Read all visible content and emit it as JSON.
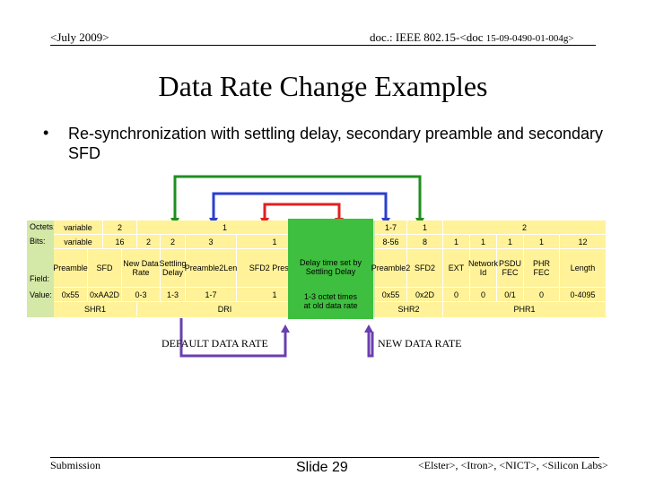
{
  "header": {
    "date": "<July 2009>",
    "doc_prefix": "doc.: IEEE 802.15-<doc ",
    "doc_number": "15-09-0490-01-004g>"
  },
  "title": "Data Rate Change Examples",
  "bullet": "Re-synchronization with settling delay, secondary preamble and secondary SFD",
  "frame": {
    "row_labels": [
      "Octets:",
      "Bits:",
      "Field:",
      "Value:"
    ],
    "left": {
      "octets": [
        "variable",
        "2",
        "1"
      ],
      "bits": [
        "variable",
        "16",
        "2",
        "2",
        "3",
        "1"
      ],
      "fields": [
        "Preamble",
        "SFD",
        "New Data Rate",
        "Settling Delay",
        "Preamble2Len",
        "SFD2 Present"
      ],
      "values": [
        "0x55",
        "0xAA2D",
        "0-3",
        "1-3",
        "1-7",
        "1"
      ],
      "groups": [
        "SHR1",
        "DRI"
      ]
    },
    "middle": {
      "field": "Delay time set by Settling Delay",
      "value": "1-3 octet times at old data rate"
    },
    "right": {
      "octets": [
        "1-7",
        "1",
        "2"
      ],
      "bits": [
        "8-56",
        "8",
        "1",
        "1",
        "1",
        "1",
        "12"
      ],
      "fields": [
        "Preamble2",
        "SFD2",
        "EXT",
        "Network Id",
        "PSDU FEC",
        "PHR FEC",
        "Length"
      ],
      "values": [
        "0x55",
        "0x2D",
        "0",
        "0",
        "0/1",
        "0",
        "0-4095"
      ],
      "groups": [
        "SHR2",
        "PHR1"
      ]
    }
  },
  "captions": {
    "default_rate": "DEFAULT DATA RATE",
    "new_rate": "NEW DATA RATE"
  },
  "footer": {
    "submission": "Submission",
    "slide": "Slide 29",
    "authors": "<Elster>, <Itron>, <NICT>, <Silicon Labs>"
  },
  "colors": {
    "table_yellow": "#fff299",
    "table_green": "#3fbf3f",
    "table_bg": "#d4e8a8",
    "green_connector": "#1f8f1f",
    "blue_connector": "#2a3fd0",
    "red_connector": "#e02020"
  }
}
